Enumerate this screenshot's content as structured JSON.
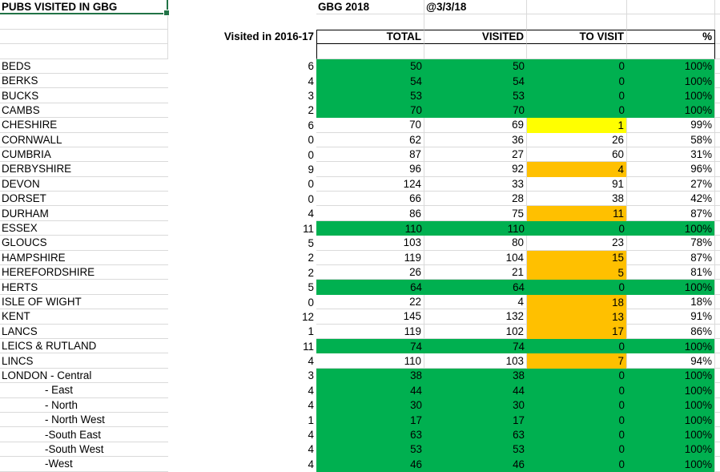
{
  "sheet": {
    "title": "PUBS VISITED IN GBG",
    "edition": "GBG 2018",
    "as_of_date": "@3/3/18",
    "columns": {
      "prev_visited": "Visited in 2016-17",
      "total": "TOTAL",
      "visited": "VISITED",
      "to_visit": "TO VISIT",
      "percent": "%"
    },
    "rows": [
      {
        "county": "BEDS",
        "prev": "6",
        "total": "50",
        "visited": "50",
        "to_visit": "0",
        "percent": "100%",
        "fill": "green",
        "to_visit_fill": "none",
        "indent": false
      },
      {
        "county": "BERKS",
        "prev": "4",
        "total": "54",
        "visited": "54",
        "to_visit": "0",
        "percent": "100%",
        "fill": "green",
        "to_visit_fill": "none",
        "indent": false
      },
      {
        "county": "BUCKS",
        "prev": "3",
        "total": "53",
        "visited": "53",
        "to_visit": "0",
        "percent": "100%",
        "fill": "green",
        "to_visit_fill": "none",
        "indent": false
      },
      {
        "county": "CAMBS",
        "prev": "2",
        "total": "70",
        "visited": "70",
        "to_visit": "0",
        "percent": "100%",
        "fill": "green",
        "to_visit_fill": "none",
        "indent": false
      },
      {
        "county": "CHESHIRE",
        "prev": "6",
        "total": "70",
        "visited": "69",
        "to_visit": "1",
        "percent": "99%",
        "fill": "white",
        "to_visit_fill": "yellow",
        "indent": false
      },
      {
        "county": "CORNWALL",
        "prev": "0",
        "total": "62",
        "visited": "36",
        "to_visit": "26",
        "percent": "58%",
        "fill": "white",
        "to_visit_fill": "none",
        "indent": false
      },
      {
        "county": "CUMBRIA",
        "prev": "0",
        "total": "87",
        "visited": "27",
        "to_visit": "60",
        "percent": "31%",
        "fill": "white",
        "to_visit_fill": "none",
        "indent": false
      },
      {
        "county": "DERBYSHIRE",
        "prev": "9",
        "total": "96",
        "visited": "92",
        "to_visit": "4",
        "percent": "96%",
        "fill": "white",
        "to_visit_fill": "orange",
        "indent": false
      },
      {
        "county": "DEVON",
        "prev": "0",
        "total": "124",
        "visited": "33",
        "to_visit": "91",
        "percent": "27%",
        "fill": "white",
        "to_visit_fill": "none",
        "indent": false
      },
      {
        "county": "DORSET",
        "prev": "0",
        "total": "66",
        "visited": "28",
        "to_visit": "38",
        "percent": "42%",
        "fill": "white",
        "to_visit_fill": "none",
        "indent": false
      },
      {
        "county": "DURHAM",
        "prev": "4",
        "total": "86",
        "visited": "75",
        "to_visit": "11",
        "percent": "87%",
        "fill": "white",
        "to_visit_fill": "orange",
        "indent": false
      },
      {
        "county": "ESSEX",
        "prev": "11",
        "total": "110",
        "visited": "110",
        "to_visit": "0",
        "percent": "100%",
        "fill": "green",
        "to_visit_fill": "none",
        "indent": false
      },
      {
        "county": "GLOUCS",
        "prev": "5",
        "total": "103",
        "visited": "80",
        "to_visit": "23",
        "percent": "78%",
        "fill": "white",
        "to_visit_fill": "none",
        "indent": false
      },
      {
        "county": "HAMPSHIRE",
        "prev": "2",
        "total": "119",
        "visited": "104",
        "to_visit": "15",
        "percent": "87%",
        "fill": "white",
        "to_visit_fill": "orange",
        "indent": false
      },
      {
        "county": "HEREFORDSHIRE",
        "prev": "2",
        "total": "26",
        "visited": "21",
        "to_visit": "5",
        "percent": "81%",
        "fill": "white",
        "to_visit_fill": "orange",
        "indent": false
      },
      {
        "county": "HERTS",
        "prev": "5",
        "total": "64",
        "visited": "64",
        "to_visit": "0",
        "percent": "100%",
        "fill": "green",
        "to_visit_fill": "none",
        "indent": false
      },
      {
        "county": "ISLE OF WIGHT",
        "prev": "0",
        "total": "22",
        "visited": "4",
        "to_visit": "18",
        "percent": "18%",
        "fill": "white",
        "to_visit_fill": "orange",
        "indent": false
      },
      {
        "county": "KENT",
        "prev": "12",
        "total": "145",
        "visited": "132",
        "to_visit": "13",
        "percent": "91%",
        "fill": "white",
        "to_visit_fill": "orange",
        "indent": false
      },
      {
        "county": "LANCS",
        "prev": "1",
        "total": "119",
        "visited": "102",
        "to_visit": "17",
        "percent": "86%",
        "fill": "white",
        "to_visit_fill": "orange",
        "indent": false
      },
      {
        "county": "LEICS & RUTLAND",
        "prev": "11",
        "total": "74",
        "visited": "74",
        "to_visit": "0",
        "percent": "100%",
        "fill": "green",
        "to_visit_fill": "none",
        "indent": false
      },
      {
        "county": "LINCS",
        "prev": "4",
        "total": "110",
        "visited": "103",
        "to_visit": "7",
        "percent": "94%",
        "fill": "white",
        "to_visit_fill": "orange",
        "indent": false
      },
      {
        "county": "LONDON - Central",
        "prev": "3",
        "total": "38",
        "visited": "38",
        "to_visit": "0",
        "percent": "100%",
        "fill": "green",
        "to_visit_fill": "none",
        "indent": false
      },
      {
        "county": "- East",
        "prev": "4",
        "total": "44",
        "visited": "44",
        "to_visit": "0",
        "percent": "100%",
        "fill": "green",
        "to_visit_fill": "none",
        "indent": true
      },
      {
        "county": "- North",
        "prev": "4",
        "total": "30",
        "visited": "30",
        "to_visit": "0",
        "percent": "100%",
        "fill": "green",
        "to_visit_fill": "none",
        "indent": true
      },
      {
        "county": "- North West",
        "prev": "1",
        "total": "17",
        "visited": "17",
        "to_visit": "0",
        "percent": "100%",
        "fill": "green",
        "to_visit_fill": "none",
        "indent": true
      },
      {
        "county": "-South East",
        "prev": "4",
        "total": "63",
        "visited": "63",
        "to_visit": "0",
        "percent": "100%",
        "fill": "green",
        "to_visit_fill": "none",
        "indent": true
      },
      {
        "county": "-South West",
        "prev": "4",
        "total": "53",
        "visited": "53",
        "to_visit": "0",
        "percent": "100%",
        "fill": "green",
        "to_visit_fill": "none",
        "indent": true
      },
      {
        "county": "-West",
        "prev": "4",
        "total": "46",
        "visited": "46",
        "to_visit": "0",
        "percent": "100%",
        "fill": "green",
        "to_visit_fill": "none",
        "indent": true
      }
    ]
  },
  "colors": {
    "green": "#00B050",
    "yellow": "#FFFF00",
    "orange": "#FFC000",
    "gridline": "#DADADA",
    "selection_border": "#217346",
    "header_border": "#000000"
  }
}
